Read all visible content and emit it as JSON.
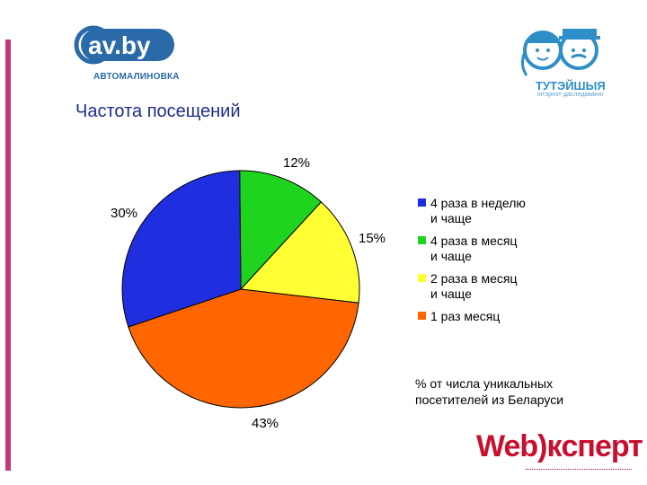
{
  "logos": {
    "av_text": "av.by",
    "av_caption": "АВТОМАЛИНОВКА",
    "tut_name": "ТУТЭЙШЫЯ",
    "tut_sub": "інтэрнэт-даследаванні",
    "web_text": "Web)кcперт"
  },
  "chart_data": {
    "type": "pie",
    "title": "Частота посещений",
    "labels": [
      "4 раза в неделю\nи чаще",
      "4 раза в месяц\nи чаще",
      "2 раза в месяц\nи чаще",
      "1 раз месяц"
    ],
    "values": [
      30,
      12,
      15,
      43
    ],
    "value_labels": [
      "30%",
      "12%",
      "15%",
      "43%"
    ],
    "colors": [
      "#1f2fe0",
      "#1ed41e",
      "#ffff33",
      "#ff6600"
    ],
    "legend_position": "right",
    "note": "% от числа уникальных\nпосетителей из Беларуси"
  }
}
